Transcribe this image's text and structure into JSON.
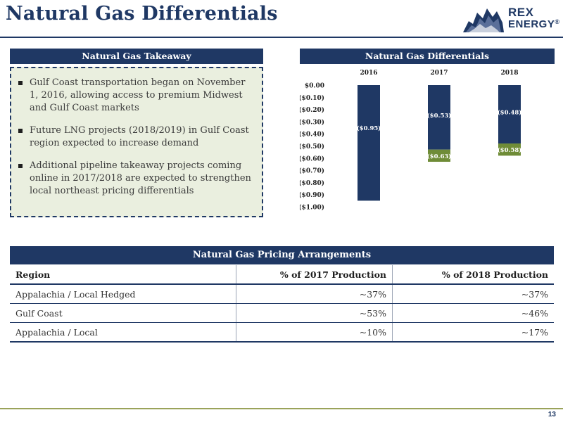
{
  "page": {
    "title": "Natural Gas Differentials",
    "page_number": "13"
  },
  "logo": {
    "word1": "REX",
    "word2": "ENERGY",
    "registered": "®"
  },
  "takeaway": {
    "header": "Natural Gas Takeaway",
    "bullets": [
      "Gulf Coast transportation began on November 1, 2016, allowing access to premium Midwest and Gulf Coast markets",
      "Future LNG projects (2018/2019) in Gulf Coast region expected to increase demand",
      "Additional pipeline takeaway projects coming online in 2017/2018 are expected to strengthen local northeast pricing differentials"
    ]
  },
  "differentials": {
    "header": "Natural Gas Differentials"
  },
  "chart_data": {
    "type": "bar",
    "title": "",
    "xlabel": "",
    "ylabel": "",
    "categories": [
      "2016",
      "2017",
      "2018"
    ],
    "ylim": [
      -1.0,
      0.0
    ],
    "yticks": [
      "$0.00",
      "($0.10)",
      "($0.20)",
      "($0.30)",
      "($0.40)",
      "($0.50)",
      "($0.60)",
      "($0.70)",
      "($0.80)",
      "($0.90)",
      "($1.00)"
    ],
    "xaxis_position": "top",
    "grid": false,
    "legend": "none",
    "series": [
      {
        "values": [
          -0.95,
          -0.53,
          -0.48
        ],
        "labels": [
          "($0.95)",
          "($0.53)",
          "($0.48)"
        ],
        "color": "#1f3864"
      },
      {
        "values": [
          null,
          -0.63,
          -0.58
        ],
        "labels": [
          "",
          "($0.63)",
          "($0.58)"
        ],
        "color": "#6f8c37",
        "note_total": true
      }
    ]
  },
  "pricing_table": {
    "title": "Natural Gas Pricing Arrangements",
    "columns": [
      "Region",
      "% of 2017 Production",
      "% of 2018 Production"
    ],
    "rows": [
      [
        "Appalachia / Local Hedged",
        "~37%",
        "~37%"
      ],
      [
        "Gulf Coast",
        "~53%",
        "~46%"
      ],
      [
        "Appalachia / Local",
        "~10%",
        "~17%"
      ]
    ]
  },
  "colors": {
    "navy": "#1f3864",
    "green": "#6f8c37",
    "panel_bg": "#eaefdf"
  }
}
